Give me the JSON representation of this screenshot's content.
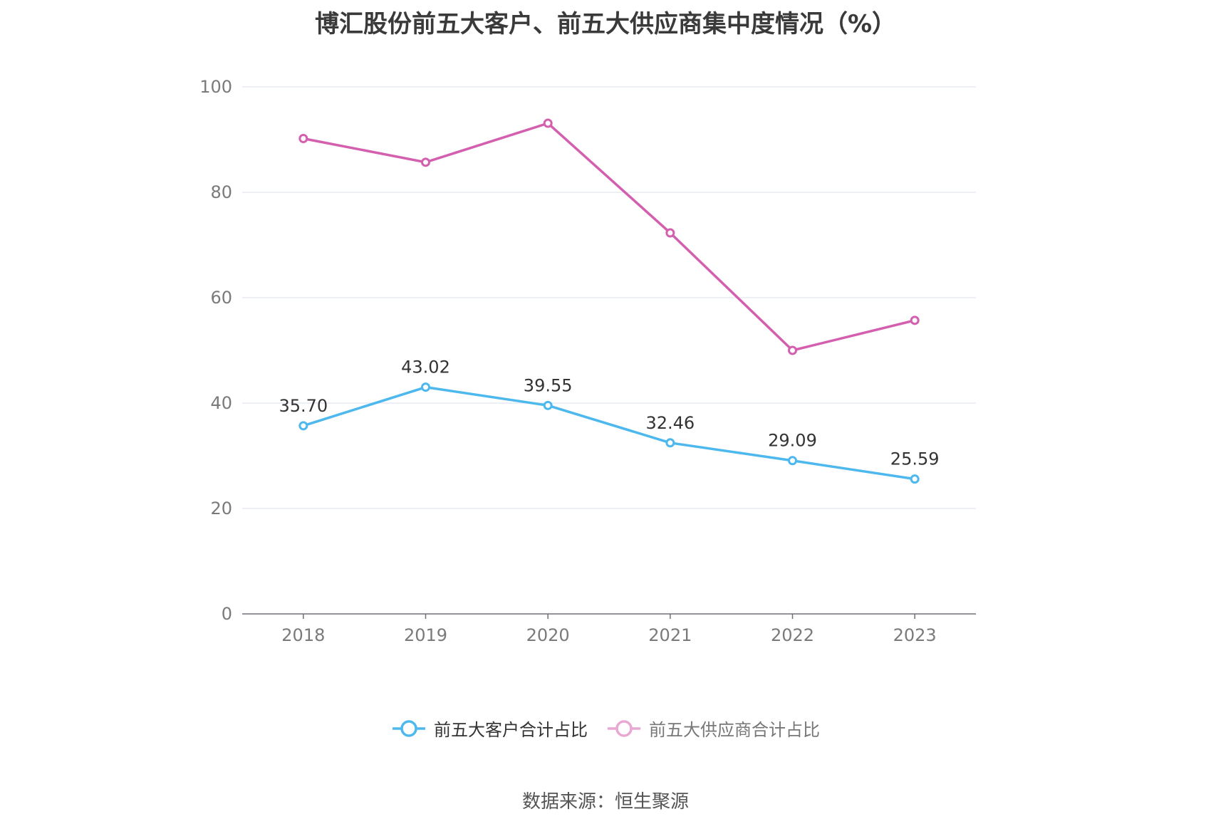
{
  "chart_data": {
    "type": "line",
    "title": "博汇股份前五大客户、前五大供应商集中度情况（%）",
    "categories": [
      "2018",
      "2019",
      "2020",
      "2021",
      "2022",
      "2023"
    ],
    "ylim": [
      0,
      100
    ],
    "yticks": [
      0,
      20,
      40,
      60,
      80,
      100
    ],
    "grid": true,
    "legend_position": "bottom",
    "series": [
      {
        "name": "前五大客户合计占比",
        "values": [
          35.7,
          43.02,
          39.55,
          32.46,
          29.09,
          25.59
        ],
        "labels": [
          "35.70",
          "43.02",
          "39.55",
          "32.46",
          "29.09",
          "25.59"
        ],
        "color": "#4db8ee",
        "show_labels": true,
        "active": true
      },
      {
        "name": "前五大供应商合计占比",
        "values": [
          90.2,
          85.7,
          93.1,
          72.3,
          50.0,
          55.7
        ],
        "color": "#d35fae",
        "legend_color": "#e9a8d3",
        "show_labels": false,
        "active": false
      }
    ]
  },
  "source": "数据来源：恒生聚源"
}
